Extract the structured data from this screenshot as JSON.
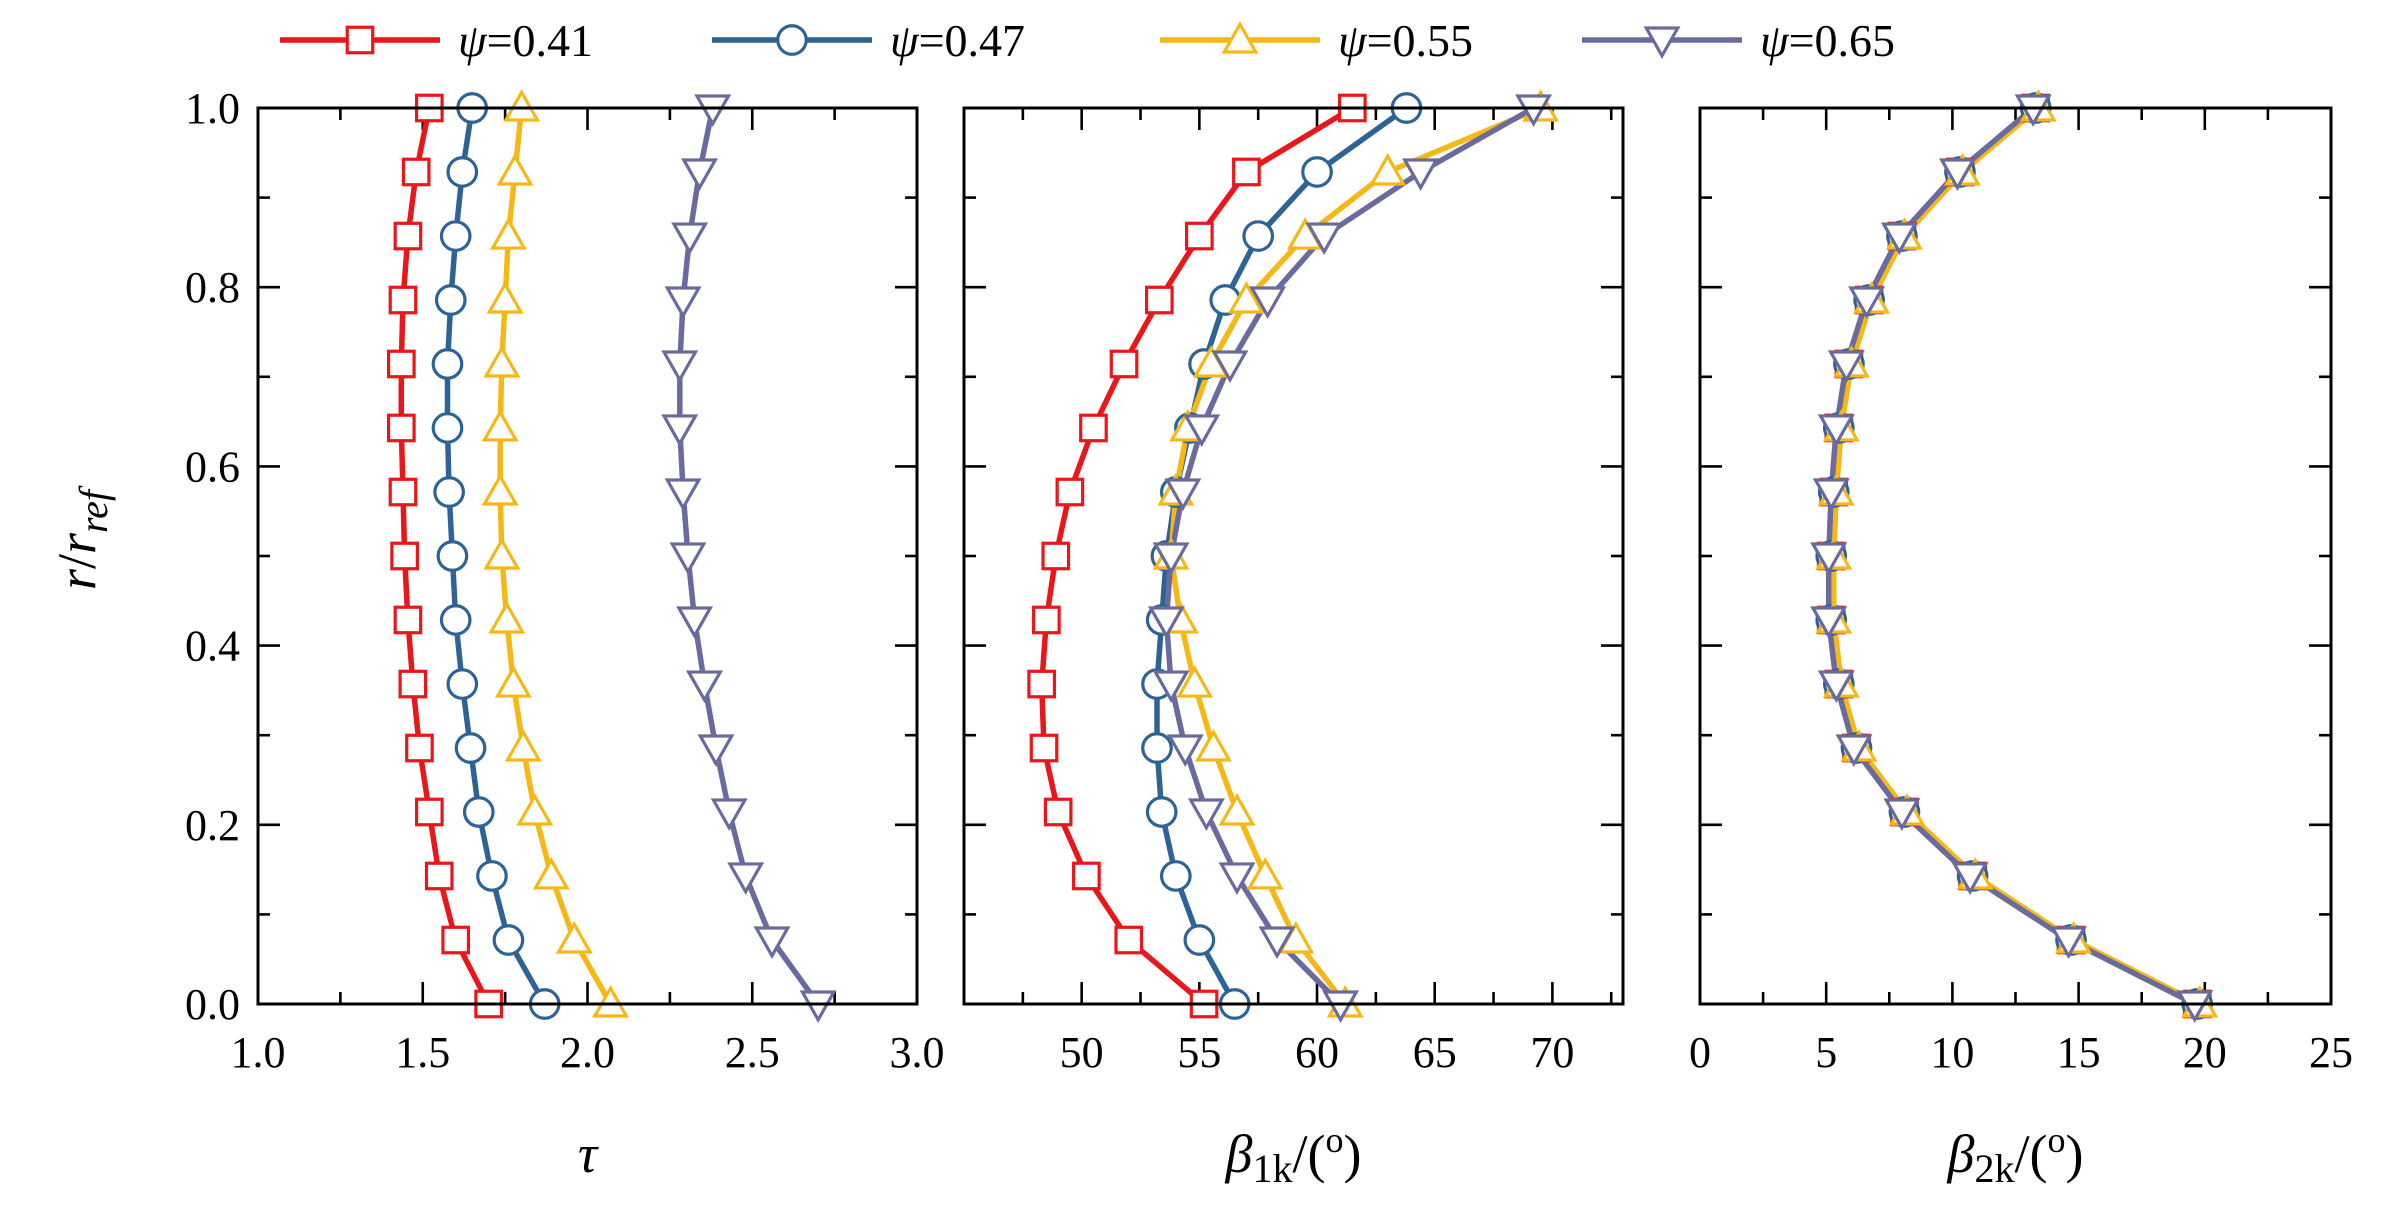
{
  "chart_data": {
    "type": "line",
    "legend_position": "top",
    "shared_y": {
      "label_main": "r",
      "label_slash": "/",
      "label_r": "r",
      "label_sub": "ref",
      "range": [
        0.0,
        1.0
      ],
      "ticks": [
        "0.0",
        "0.2",
        "0.4",
        "0.6",
        "0.8",
        "1.0"
      ]
    },
    "legend": [
      {
        "symbol": "ψ",
        "text": "=0.41",
        "color": "#e8171b",
        "marker": "square"
      },
      {
        "symbol": "ψ",
        "text": "=0.47",
        "color": "#2e6396",
        "marker": "circle"
      },
      {
        "symbol": "ψ",
        "text": "=0.55",
        "color": "#f4b817",
        "marker": "triangle-up"
      },
      {
        "symbol": "ψ",
        "text": "=0.65",
        "color": "#6b6a9e",
        "marker": "triangle-down"
      }
    ],
    "y": [
      0,
      0.0714,
      0.1429,
      0.2143,
      0.2857,
      0.3571,
      0.4286,
      0.5,
      0.5714,
      0.6429,
      0.7143,
      0.7857,
      0.8571,
      0.9286,
      1.0
    ],
    "panels": [
      {
        "id": "tau",
        "xlabel": "τ",
        "xlim": [
          1.0,
          3.0
        ],
        "ticks": [
          "1.0",
          "1.5",
          "2.0",
          "2.5",
          "3.0"
        ],
        "tick_values": [
          1.0,
          1.5,
          2.0,
          2.5,
          3.0
        ],
        "minor_step": 0.25,
        "series": [
          {
            "name": "ψ=0.41",
            "values": [
              1.7,
              1.6,
              1.55,
              1.52,
              1.49,
              1.47,
              1.455,
              1.445,
              1.44,
              1.435,
              1.435,
              1.44,
              1.455,
              1.48,
              1.52
            ]
          },
          {
            "name": "ψ=0.47",
            "values": [
              1.87,
              1.76,
              1.71,
              1.67,
              1.645,
              1.62,
              1.6,
              1.59,
              1.58,
              1.575,
              1.575,
              1.585,
              1.6,
              1.62,
              1.65
            ]
          },
          {
            "name": "ψ=0.55",
            "values": [
              2.07,
              1.96,
              1.89,
              1.84,
              1.805,
              1.775,
              1.755,
              1.74,
              1.735,
              1.735,
              1.74,
              1.75,
              1.76,
              1.78,
              1.8
            ]
          },
          {
            "name": "ψ=0.65",
            "values": [
              2.7,
              2.56,
              2.48,
              2.43,
              2.39,
              2.355,
              2.325,
              2.305,
              2.29,
              2.28,
              2.28,
              2.29,
              2.31,
              2.34,
              2.38
            ]
          }
        ]
      },
      {
        "id": "beta1k",
        "xlabel": "β",
        "xlabel_sub": "1k",
        "xlabel_tail": "/(",
        "xlabel_sup": "o",
        "xlabel_close": ")",
        "xlim": [
          45,
          73
        ],
        "ticks": [
          "50",
          "55",
          "60",
          "65",
          "70"
        ],
        "tick_values": [
          50,
          55,
          60,
          65,
          70
        ],
        "minor_step": 2.5,
        "series": [
          {
            "name": "ψ=0.41",
            "values": [
              55.2,
              52.0,
              50.2,
              49.0,
              48.4,
              48.3,
              48.5,
              48.9,
              49.5,
              50.5,
              51.8,
              53.3,
              55.0,
              57.0,
              61.5
            ]
          },
          {
            "name": "ψ=0.47",
            "values": [
              56.5,
              55.0,
              54.0,
              53.4,
              53.2,
              53.2,
              53.4,
              53.6,
              54.0,
              54.6,
              55.2,
              56.1,
              57.5,
              60.0,
              63.8
            ]
          },
          {
            "name": "ψ=0.55",
            "values": [
              61.2,
              59.1,
              57.8,
              56.6,
              55.6,
              54.8,
              54.2,
              53.8,
              54.0,
              54.5,
              55.5,
              57.0,
              59.5,
              63.0,
              69.5
            ]
          },
          {
            "name": "ψ=0.65",
            "values": [
              61.0,
              58.3,
              56.6,
              55.3,
              54.4,
              53.8,
              53.6,
              53.8,
              54.3,
              55.1,
              56.3,
              57.9,
              60.3,
              64.4,
              69.2
            ]
          }
        ]
      },
      {
        "id": "beta2k",
        "xlabel": "β",
        "xlabel_sub": "2k",
        "xlabel_tail": "/(",
        "xlabel_sup": "o",
        "xlabel_close": ")",
        "xlim": [
          0,
          25
        ],
        "ticks": [
          "0",
          "5",
          "10",
          "15",
          "20",
          "25"
        ],
        "tick_values": [
          0,
          5,
          10,
          15,
          20,
          25
        ],
        "minor_step": 2.5,
        "series": [
          {
            "name": "ψ=0.41",
            "values": [
              19.7,
              14.7,
              10.8,
              8.1,
              6.2,
              5.5,
              5.2,
              5.2,
              5.3,
              5.5,
              5.9,
              6.7,
              8.0,
              10.3,
              13.3
            ]
          },
          {
            "name": "ψ=0.47",
            "values": [
              19.7,
              14.7,
              10.8,
              8.1,
              6.2,
              5.5,
              5.2,
              5.2,
              5.3,
              5.5,
              5.9,
              6.7,
              8.0,
              10.3,
              13.3
            ]
          },
          {
            "name": "ψ=0.55",
            "values": [
              19.8,
              14.8,
              10.9,
              8.2,
              6.3,
              5.6,
              5.3,
              5.3,
              5.4,
              5.6,
              6.0,
              6.8,
              8.1,
              10.4,
              13.4
            ]
          },
          {
            "name": "ψ=0.65",
            "values": [
              19.6,
              14.6,
              10.7,
              8.0,
              6.1,
              5.4,
              5.1,
              5.1,
              5.2,
              5.4,
              5.8,
              6.6,
              7.9,
              10.2,
              13.2
            ]
          }
        ]
      }
    ]
  }
}
